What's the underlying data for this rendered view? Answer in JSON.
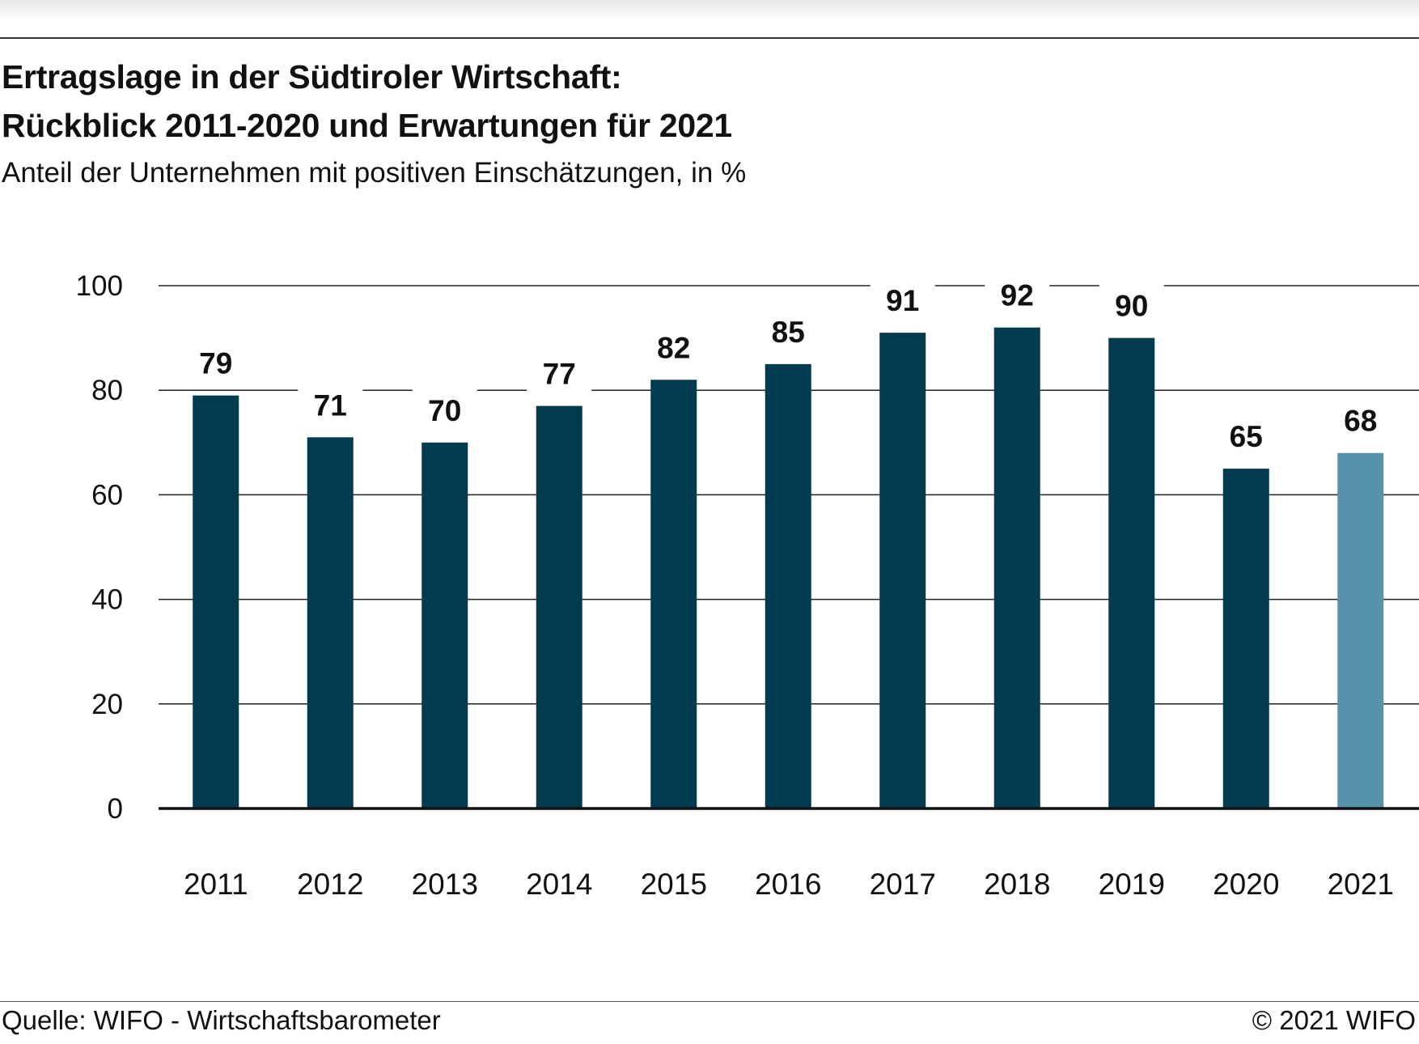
{
  "header": {
    "title_line1": "Ertragslage in der Südtiroler Wirtschaft:",
    "title_line2": "Rückblick 2011-2020 und Erwartungen für 2021",
    "subtitle": "Anteil der Unternehmen mit positiven Einschätzungen, in %"
  },
  "footer": {
    "source": "Quelle: WIFO - Wirtschaftsbarometer",
    "copyright": "© 2021 WIFO"
  },
  "chart_data": {
    "type": "bar",
    "categories": [
      "2011",
      "2012",
      "2013",
      "2014",
      "2015",
      "2016",
      "2017",
      "2018",
      "2019",
      "2020",
      "2021"
    ],
    "values": [
      79,
      71,
      70,
      77,
      82,
      85,
      91,
      92,
      90,
      65,
      68
    ],
    "data_labels": [
      "79",
      "71",
      "70",
      "77",
      "82",
      "85",
      "91",
      "92",
      "90",
      "65",
      "68"
    ],
    "ylim": [
      0,
      100
    ],
    "yticks": [
      0,
      20,
      40,
      60,
      80,
      100
    ],
    "grid": true,
    "legend": "none",
    "colors": {
      "bar": "#023a50",
      "bar_forecast": "#5592ab",
      "grid": "#222222"
    }
  }
}
